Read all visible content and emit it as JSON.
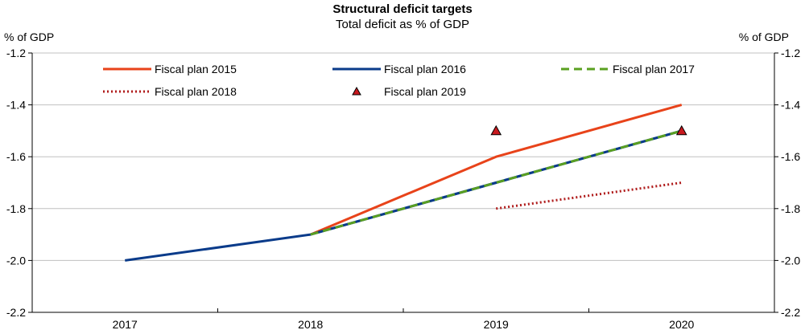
{
  "chart_data": {
    "type": "line",
    "title": "Structural deficit targets",
    "subtitle": "Total deficit as % of GDP",
    "ylabel_left": "% of GDP",
    "ylabel_right": "% of GDP",
    "categories": [
      "2017",
      "2018",
      "2019",
      "2020"
    ],
    "ylim": [
      -2.2,
      -1.2
    ],
    "yticks": [
      -1.2,
      -1.4,
      -1.6,
      -1.8,
      -2.0,
      -2.2
    ],
    "ytick_labels": [
      "-1.2",
      "-1.4",
      "-1.6",
      "-1.8",
      "-2.0",
      "-2.2"
    ],
    "grid": true,
    "legend_position": "top",
    "series": [
      {
        "name": "Fiscal plan 2015",
        "style": "solid",
        "marker": "none",
        "color": "#e8431a",
        "values": [
          null,
          -1.9,
          -1.6,
          -1.4
        ]
      },
      {
        "name": "Fiscal plan 2016",
        "style": "solid",
        "marker": "none",
        "color": "#0a3b8a",
        "values": [
          -2.0,
          -1.9,
          -1.7,
          -1.5
        ]
      },
      {
        "name": "Fiscal plan 2017",
        "style": "dashed",
        "marker": "none",
        "color": "#5aa021",
        "values": [
          null,
          -1.9,
          -1.7,
          -1.5
        ]
      },
      {
        "name": "Fiscal plan 2018",
        "style": "dotted",
        "marker": "none",
        "color": "#b01c1c",
        "values": [
          null,
          null,
          -1.8,
          -1.7
        ]
      },
      {
        "name": "Fiscal plan 2019",
        "style": "none",
        "marker": "triangle",
        "color": "#c8191e",
        "values": [
          null,
          null,
          -1.5,
          -1.5
        ]
      }
    ]
  }
}
